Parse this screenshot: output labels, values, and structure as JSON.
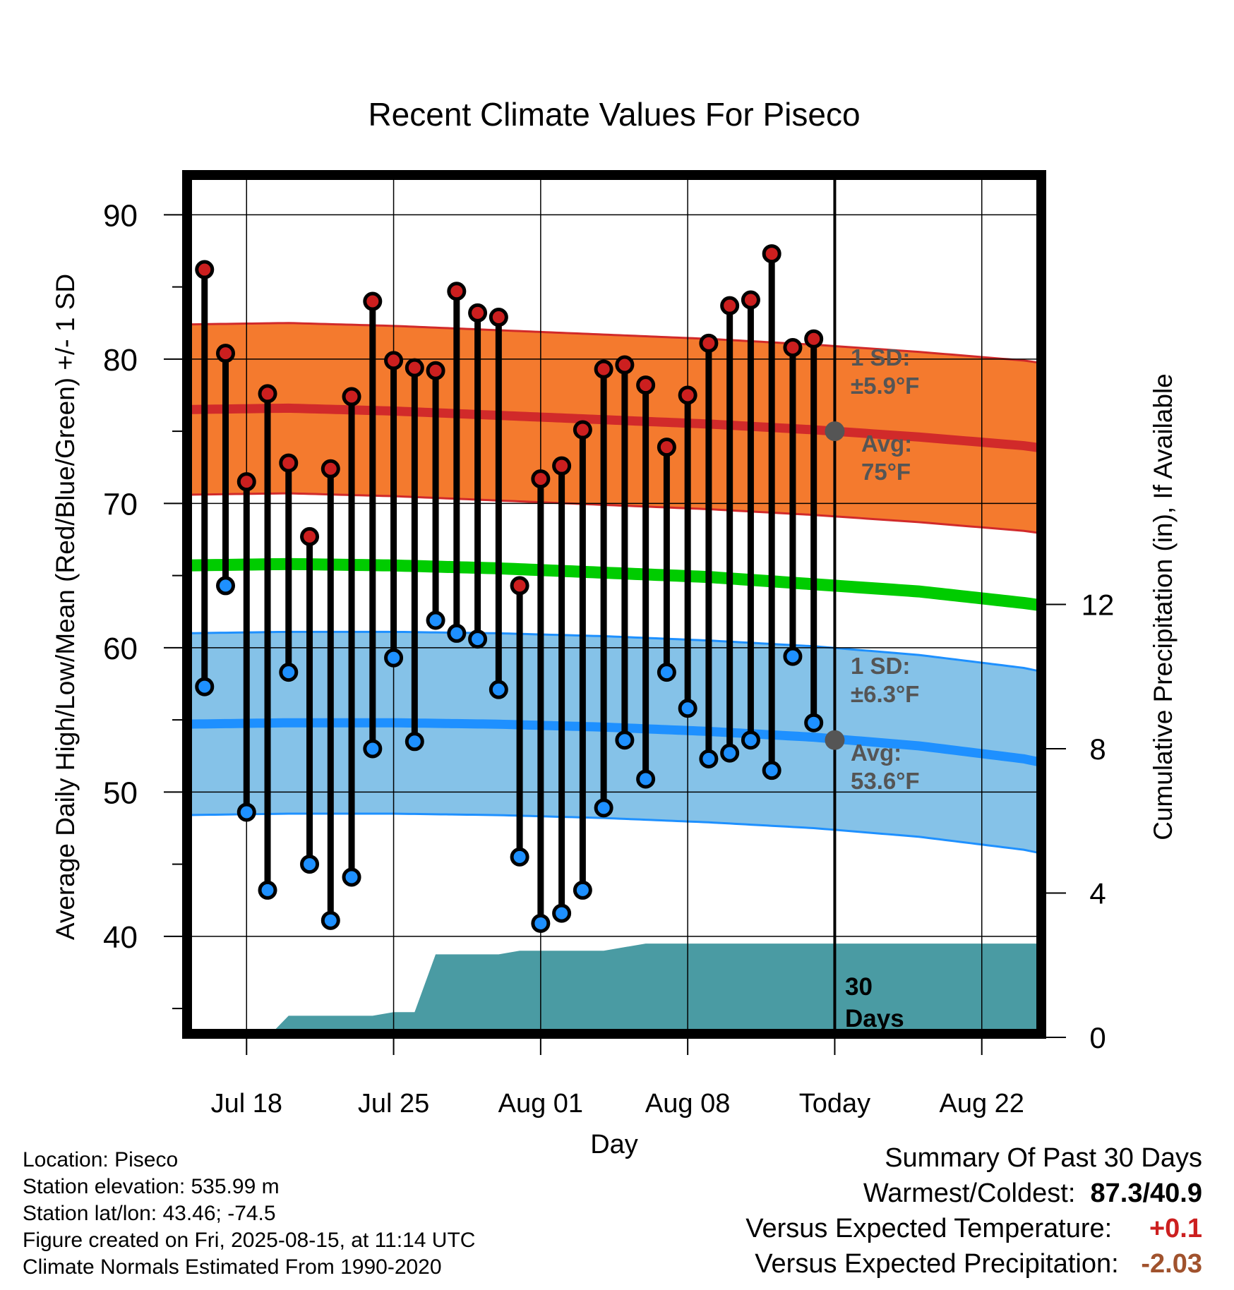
{
  "chart_data": {
    "type": "line",
    "title": "Recent Climate Values For Piseco",
    "xlabel": "Day",
    "ylabel": "Average Daily High/Low/Mean (Red/Blue/Green) +/- 1 SD",
    "y2label": "Cumulative Precipitation (in), If Available",
    "ylim": [
      33,
      93
    ],
    "y2lim": [
      0,
      24
    ],
    "y_ticks": [
      "40",
      "50",
      "60",
      "70",
      "80",
      "90"
    ],
    "y2_ticks": [
      "0",
      "4",
      "8",
      "12"
    ],
    "x_ticks": [
      {
        "label": "Jul 18",
        "date": "2025-07-18"
      },
      {
        "label": "Jul 25",
        "date": "2025-07-25"
      },
      {
        "label": "Aug 01",
        "date": "2025-08-01"
      },
      {
        "label": "Aug 08",
        "date": "2025-08-08"
      },
      {
        "label": "Today",
        "date": "2025-08-15"
      },
      {
        "label": "Aug 22",
        "date": "2025-08-22"
      }
    ],
    "x_range": [
      "2025-07-15",
      "2025-08-25"
    ],
    "grid": true,
    "today": "2025-08-15",
    "window_label": "30\nDays",
    "observations": {
      "dates": [
        "2025-07-16",
        "2025-07-17",
        "2025-07-18",
        "2025-07-19",
        "2025-07-20",
        "2025-07-21",
        "2025-07-22",
        "2025-07-23",
        "2025-07-24",
        "2025-07-25",
        "2025-07-26",
        "2025-07-27",
        "2025-07-28",
        "2025-07-29",
        "2025-07-30",
        "2025-07-31",
        "2025-08-01",
        "2025-08-02",
        "2025-08-03",
        "2025-08-04",
        "2025-08-05",
        "2025-08-06",
        "2025-08-07",
        "2025-08-08",
        "2025-08-09",
        "2025-08-10",
        "2025-08-11",
        "2025-08-12",
        "2025-08-13",
        "2025-08-14"
      ],
      "high": [
        86.2,
        80.4,
        71.5,
        77.6,
        72.8,
        67.7,
        72.4,
        77.4,
        84.0,
        79.9,
        79.4,
        79.2,
        84.7,
        83.2,
        82.9,
        64.3,
        71.7,
        72.6,
        75.1,
        79.3,
        79.6,
        78.2,
        73.9,
        77.5,
        81.1,
        83.7,
        84.1,
        87.3,
        80.8,
        81.4
      ],
      "low": [
        57.3,
        64.3,
        48.6,
        43.2,
        58.3,
        45.0,
        41.1,
        44.1,
        53.0,
        59.3,
        53.5,
        61.9,
        61.0,
        60.6,
        57.1,
        45.5,
        40.9,
        41.6,
        43.2,
        48.9,
        53.6,
        50.9,
        58.3,
        55.8,
        52.3,
        52.7,
        53.6,
        51.5,
        59.4,
        54.8
      ],
      "high_color": "#cc1f1f",
      "low_color": "#1e90ff"
    },
    "normals": {
      "dates": [
        "2025-07-15",
        "2025-07-20",
        "2025-07-25",
        "2025-07-30",
        "2025-08-04",
        "2025-08-09",
        "2025-08-14",
        "2025-08-19",
        "2025-08-24",
        "2025-08-25"
      ],
      "high_avg": [
        76.5,
        76.6,
        76.4,
        76.1,
        75.8,
        75.5,
        75.1,
        74.6,
        74.0,
        73.8
      ],
      "low_avg": [
        54.7,
        54.8,
        54.8,
        54.7,
        54.5,
        54.2,
        53.8,
        53.2,
        52.3,
        52.0
      ],
      "mean_avg": [
        65.7,
        65.8,
        65.7,
        65.5,
        65.2,
        64.9,
        64.4,
        63.9,
        63.1,
        62.9
      ],
      "high_sd": 5.9,
      "low_sd": 6.3,
      "high_band_color": "#f47a2e",
      "high_line_color": "#d12a2a",
      "low_band_color": "#85c2e8",
      "low_line_color": "#1e90ff",
      "mean_color": "#00cc00"
    },
    "precipitation": {
      "dates": [
        "2025-07-15",
        "2025-07-19",
        "2025-07-20",
        "2025-07-24",
        "2025-07-25",
        "2025-07-26",
        "2025-07-27",
        "2025-07-28",
        "2025-07-30",
        "2025-07-31",
        "2025-08-01",
        "2025-08-04",
        "2025-08-06",
        "2025-08-07",
        "2025-08-15",
        "2025-08-25"
      ],
      "cumulative": [
        0,
        0,
        0.6,
        0.6,
        0.7,
        0.7,
        2.3,
        2.3,
        2.3,
        2.4,
        2.4,
        2.4,
        2.6,
        2.6,
        2.6,
        2.6
      ],
      "color": "#4a9ba3"
    },
    "annotations": {
      "high_sd_label": "1 SD:\n±5.9°F",
      "high_avg_label": "Avg:\n75°F",
      "low_sd_label": "1 SD:\n±6.3°F",
      "low_avg_label": "Avg:\n53.6°F",
      "high_avg_today": 75.0,
      "low_avg_today": 53.6
    }
  },
  "info": {
    "location": "Location: Piseco",
    "elevation": "Station elevation: 535.99 m",
    "latlon": "Station lat/lon: 43.46; -74.5",
    "created": "Figure created on Fri, 2025-08-15, at 11:14 UTC",
    "normals": "Climate Normals Estimated From 1990-2020"
  },
  "summary": {
    "title": "Summary Of Past 30 Days",
    "warm_cold_label": "Warmest/Coldest:",
    "warm_cold_value": "87.3/40.9",
    "temp_label": "Versus Expected Temperature:",
    "temp_value": "+0.1",
    "temp_color": "#cc1f1f",
    "precip_label": "Versus Expected Precipitation:",
    "precip_value": "-2.03",
    "precip_color": "#a0522d"
  }
}
